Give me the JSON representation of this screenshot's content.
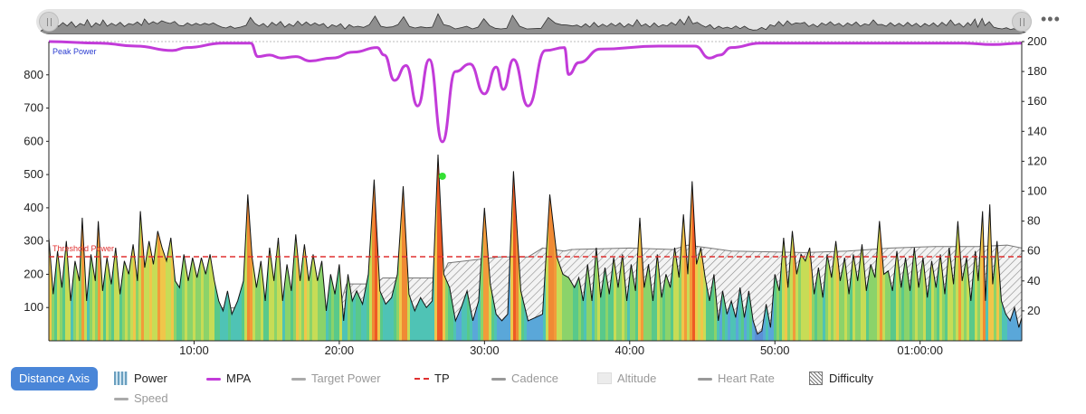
{
  "overview": {
    "left_handle_icon": "drag-handle-icon",
    "right_handle_icon": "drag-handle-icon",
    "menu_icon": "more-horizontal-icon",
    "menu_text": "•••"
  },
  "buttons": {
    "distance_axis": "Distance Axis"
  },
  "legend": [
    {
      "key": "power",
      "label": "Power",
      "icon": "power-bars-swatch",
      "color": "#6a9fbf",
      "active": true
    },
    {
      "key": "mpa",
      "label": "MPA",
      "icon": "line-swatch",
      "color": "#c23bd9",
      "active": true
    },
    {
      "key": "target_power",
      "label": "Target Power",
      "icon": "line-swatch",
      "color": "#aaaaaa",
      "active": false
    },
    {
      "key": "tp",
      "label": "TP",
      "icon": "dashed-line-swatch",
      "color": "#e03030",
      "active": true
    },
    {
      "key": "cadence",
      "label": "Cadence",
      "icon": "line-swatch",
      "color": "#999999",
      "active": false
    },
    {
      "key": "altitude",
      "label": "Altitude",
      "icon": "area-swatch",
      "color": "#dddddd",
      "active": false
    },
    {
      "key": "heart_rate",
      "label": "Heart Rate",
      "icon": "line-swatch",
      "color": "#999999",
      "active": false
    },
    {
      "key": "difficulty",
      "label": "Difficulty",
      "icon": "hatched-swatch",
      "color": "#777777",
      "active": true
    },
    {
      "key": "speed",
      "label": "Speed",
      "icon": "line-swatch",
      "color": "#aaaaaa",
      "active": false
    }
  ],
  "chart_data": {
    "type": "area",
    "x_unit": "minutes",
    "xlim": [
      0,
      67
    ],
    "x_ticks": [
      10,
      20,
      30,
      40,
      50,
      60
    ],
    "x_tick_labels": [
      "10:00",
      "20:00",
      "30:00",
      "40:00",
      "50:00",
      "01:00:00"
    ],
    "y_left_ticks": [
      100,
      200,
      300,
      400,
      500,
      600,
      700,
      800
    ],
    "y_left_range": [
      0,
      900
    ],
    "y_right_ticks": [
      20,
      40,
      60,
      80,
      100,
      120,
      140,
      160,
      180,
      200
    ],
    "y_right_range": [
      0,
      200
    ],
    "annotations": {
      "peak_power": "Peak Power",
      "threshold_power": "Threshold Power",
      "threshold_value": 253
    },
    "marker": {
      "x": 27.1,
      "y": 495,
      "color": "#34e034"
    },
    "colors": {
      "mpa": "#c23bd9",
      "tp": "#e03030",
      "outline": "#111111",
      "difficulty": "#8a8a8a"
    },
    "series": [
      {
        "name": "MPA",
        "axis": "right",
        "points": [
          [
            0,
            200
          ],
          [
            3.5,
            199
          ],
          [
            6,
            197
          ],
          [
            8.5,
            194
          ],
          [
            9.5,
            196
          ],
          [
            12,
            199
          ],
          [
            13.9,
            199
          ],
          [
            14.4,
            190
          ],
          [
            15.2,
            191
          ],
          [
            16,
            189
          ],
          [
            17,
            190
          ],
          [
            18,
            187
          ],
          [
            19.5,
            189
          ],
          [
            21,
            193
          ],
          [
            22.6,
            196
          ],
          [
            23.1,
            191
          ],
          [
            23.8,
            174
          ],
          [
            24.6,
            184
          ],
          [
            25.4,
            157
          ],
          [
            26.2,
            188
          ],
          [
            27.1,
            133
          ],
          [
            28,
            180
          ],
          [
            29,
            185
          ],
          [
            30,
            165
          ],
          [
            30.8,
            183
          ],
          [
            31.3,
            168
          ],
          [
            32,
            188
          ],
          [
            33,
            157
          ],
          [
            34.2,
            194
          ],
          [
            35.5,
            196
          ],
          [
            35.8,
            178
          ],
          [
            36.5,
            186
          ],
          [
            38,
            195
          ],
          [
            42,
            197
          ],
          [
            44.5,
            197
          ],
          [
            45.5,
            189
          ],
          [
            46.2,
            191
          ],
          [
            47,
            196
          ],
          [
            49,
            199
          ],
          [
            55,
            199
          ],
          [
            63,
            199
          ],
          [
            65,
            198
          ],
          [
            67,
            199
          ]
        ]
      },
      {
        "name": "Difficulty",
        "axis": "right",
        "points": [
          [
            0,
            0
          ],
          [
            11,
            0
          ],
          [
            11,
            22
          ],
          [
            20,
            22
          ],
          [
            20.5,
            38
          ],
          [
            22.5,
            38
          ],
          [
            23,
            42
          ],
          [
            27,
            42
          ],
          [
            27.5,
            52
          ],
          [
            31,
            56
          ],
          [
            33,
            56
          ],
          [
            34,
            62
          ],
          [
            35.5,
            60
          ],
          [
            36,
            61
          ],
          [
            40,
            62
          ],
          [
            43,
            61
          ],
          [
            44,
            64
          ],
          [
            45.5,
            62
          ],
          [
            47,
            60
          ],
          [
            52,
            59
          ],
          [
            55,
            60
          ],
          [
            58,
            62
          ],
          [
            61,
            63
          ],
          [
            64,
            63
          ],
          [
            66,
            64
          ],
          [
            67,
            62
          ],
          [
            67,
            0
          ]
        ]
      },
      {
        "name": "Power",
        "axis": "left",
        "points": [
          [
            0,
            310
          ],
          [
            0.3,
            140
          ],
          [
            0.6,
            270
          ],
          [
            0.9,
            160
          ],
          [
            1.2,
            300
          ],
          [
            1.5,
            120
          ],
          [
            1.8,
            240
          ],
          [
            2.1,
            180
          ],
          [
            2.3,
            370
          ],
          [
            2.6,
            120
          ],
          [
            2.9,
            260
          ],
          [
            3.2,
            180
          ],
          [
            3.4,
            360
          ],
          [
            3.7,
            150
          ],
          [
            4,
            250
          ],
          [
            4.3,
            170
          ],
          [
            4.6,
            280
          ],
          [
            4.9,
            140
          ],
          [
            5.2,
            240
          ],
          [
            5.5,
            200
          ],
          [
            5.8,
            290
          ],
          [
            6.1,
            180
          ],
          [
            6.3,
            390
          ],
          [
            6.6,
            220
          ],
          [
            6.9,
            300
          ],
          [
            7.2,
            230
          ],
          [
            7.5,
            330
          ],
          [
            7.8,
            280
          ],
          [
            8.1,
            240
          ],
          [
            8.4,
            310
          ],
          [
            8.7,
            180
          ],
          [
            9,
            160
          ],
          [
            9.3,
            260
          ],
          [
            9.6,
            180
          ],
          [
            9.9,
            250
          ],
          [
            10.2,
            190
          ],
          [
            10.5,
            250
          ],
          [
            10.8,
            200
          ],
          [
            11.1,
            260
          ],
          [
            11.4,
            180
          ],
          [
            11.7,
            120
          ],
          [
            12,
            90
          ],
          [
            12.3,
            150
          ],
          [
            12.6,
            80
          ],
          [
            13,
            120
          ],
          [
            13.4,
            180
          ],
          [
            13.7,
            440
          ],
          [
            14,
            250
          ],
          [
            14.3,
            160
          ],
          [
            14.6,
            240
          ],
          [
            14.9,
            120
          ],
          [
            15.2,
            280
          ],
          [
            15.5,
            180
          ],
          [
            15.8,
            310
          ],
          [
            16.1,
            120
          ],
          [
            16.4,
            230
          ],
          [
            16.7,
            150
          ],
          [
            17,
            320
          ],
          [
            17.3,
            180
          ],
          [
            17.6,
            290
          ],
          [
            17.9,
            180
          ],
          [
            18.2,
            260
          ],
          [
            18.5,
            180
          ],
          [
            18.8,
            240
          ],
          [
            19.1,
            90
          ],
          [
            19.4,
            200
          ],
          [
            19.7,
            140
          ],
          [
            20,
            230
          ],
          [
            20.3,
            60
          ],
          [
            20.6,
            200
          ],
          [
            20.9,
            120
          ],
          [
            21.2,
            150
          ],
          [
            21.6,
            110
          ],
          [
            22,
            200
          ],
          [
            22.4,
            485
          ],
          [
            22.8,
            150
          ],
          [
            23.2,
            110
          ],
          [
            23.6,
            130
          ],
          [
            24,
            200
          ],
          [
            24.4,
            465
          ],
          [
            24.8,
            140
          ],
          [
            25.2,
            90
          ],
          [
            25.6,
            130
          ],
          [
            26,
            100
          ],
          [
            26.4,
            120
          ],
          [
            26.8,
            560
          ],
          [
            27.2,
            200
          ],
          [
            27.6,
            160
          ],
          [
            28,
            60
          ],
          [
            28.4,
            100
          ],
          [
            28.8,
            150
          ],
          [
            29.2,
            60
          ],
          [
            29.6,
            120
          ],
          [
            30,
            400
          ],
          [
            30.4,
            170
          ],
          [
            30.8,
            80
          ],
          [
            31.2,
            60
          ],
          [
            31.6,
            80
          ],
          [
            32,
            510
          ],
          [
            32.5,
            150
          ],
          [
            33,
            60
          ],
          [
            33.5,
            70
          ],
          [
            34,
            80
          ],
          [
            34.5,
            440
          ],
          [
            35,
            250
          ],
          [
            35.4,
            200
          ],
          [
            35.8,
            190
          ],
          [
            36.2,
            160
          ],
          [
            36.5,
            190
          ],
          [
            36.8,
            120
          ],
          [
            37.1,
            230
          ],
          [
            37.4,
            120
          ],
          [
            37.7,
            280
          ],
          [
            38,
            130
          ],
          [
            38.3,
            220
          ],
          [
            38.6,
            140
          ],
          [
            38.9,
            250
          ],
          [
            39.2,
            160
          ],
          [
            39.5,
            260
          ],
          [
            39.8,
            120
          ],
          [
            40.1,
            230
          ],
          [
            40.4,
            150
          ],
          [
            40.7,
            370
          ],
          [
            41,
            160
          ],
          [
            41.3,
            230
          ],
          [
            41.6,
            120
          ],
          [
            41.9,
            260
          ],
          [
            42.2,
            130
          ],
          [
            42.5,
            200
          ],
          [
            42.8,
            160
          ],
          [
            43.1,
            280
          ],
          [
            43.4,
            190
          ],
          [
            43.7,
            380
          ],
          [
            44,
            200
          ],
          [
            44.3,
            480
          ],
          [
            44.6,
            230
          ],
          [
            44.9,
            280
          ],
          [
            45.2,
            190
          ],
          [
            45.5,
            120
          ],
          [
            45.8,
            200
          ],
          [
            46.1,
            60
          ],
          [
            46.4,
            150
          ],
          [
            46.7,
            80
          ],
          [
            47,
            120
          ],
          [
            47.3,
            70
          ],
          [
            47.6,
            160
          ],
          [
            47.9,
            70
          ],
          [
            48.2,
            150
          ],
          [
            48.5,
            60
          ],
          [
            48.8,
            20
          ],
          [
            49.1,
            30
          ],
          [
            49.4,
            110
          ],
          [
            49.7,
            40
          ],
          [
            50,
            200
          ],
          [
            50.3,
            150
          ],
          [
            50.6,
            310
          ],
          [
            50.9,
            160
          ],
          [
            51.2,
            330
          ],
          [
            51.5,
            200
          ],
          [
            51.8,
            260
          ],
          [
            52.1,
            240
          ],
          [
            52.4,
            280
          ],
          [
            52.7,
            140
          ],
          [
            53,
            220
          ],
          [
            53.3,
            130
          ],
          [
            53.6,
            260
          ],
          [
            53.9,
            190
          ],
          [
            54.2,
            300
          ],
          [
            54.5,
            180
          ],
          [
            54.8,
            250
          ],
          [
            55.1,
            140
          ],
          [
            55.4,
            260
          ],
          [
            55.7,
            180
          ],
          [
            56,
            290
          ],
          [
            56.3,
            150
          ],
          [
            56.6,
            230
          ],
          [
            56.9,
            190
          ],
          [
            57.2,
            360
          ],
          [
            57.5,
            200
          ],
          [
            57.8,
            210
          ],
          [
            58.1,
            150
          ],
          [
            58.4,
            270
          ],
          [
            58.7,
            160
          ],
          [
            59,
            250
          ],
          [
            59.3,
            150
          ],
          [
            59.6,
            280
          ],
          [
            59.9,
            160
          ],
          [
            60.2,
            250
          ],
          [
            60.5,
            130
          ],
          [
            60.8,
            240
          ],
          [
            61.1,
            160
          ],
          [
            61.4,
            260
          ],
          [
            61.7,
            140
          ],
          [
            62,
            280
          ],
          [
            62.3,
            170
          ],
          [
            62.6,
            360
          ],
          [
            62.9,
            180
          ],
          [
            63.2,
            250
          ],
          [
            63.5,
            120
          ],
          [
            63.8,
            270
          ],
          [
            64,
            180
          ],
          [
            64.3,
            390
          ],
          [
            64.5,
            120
          ],
          [
            64.8,
            410
          ],
          [
            65,
            170
          ],
          [
            65.3,
            300
          ],
          [
            65.6,
            120
          ],
          [
            65.9,
            80
          ],
          [
            66.2,
            60
          ],
          [
            66.5,
            100
          ],
          [
            66.8,
            40
          ],
          [
            67,
            70
          ]
        ]
      }
    ]
  }
}
